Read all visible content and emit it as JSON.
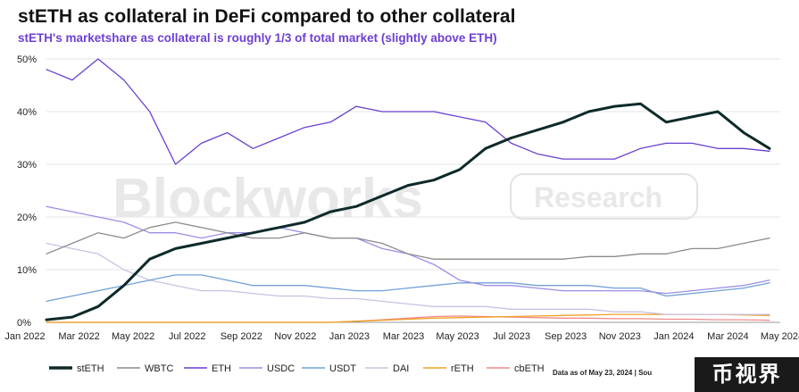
{
  "title": "stETH as collateral in DeFi compared to other collateral",
  "subtitle": "stETH's marketshare as collateral is roughly 1/3 of total market (slightly above ETH)",
  "watermark": {
    "brand": "Blockworks",
    "tag": "Research"
  },
  "note": "Data as of May 23, 2024 | Sou",
  "badge": "币视界",
  "colors": {
    "stETH": "#0d2a2a",
    "WBTC": "#8a8a8a",
    "ETH": "#6a3fcf",
    "USDC": "#9b8ee6",
    "USDT": "#6fa0d8",
    "DAI": "#c8c2e4",
    "rETH": "#f0a020",
    "cbETH": "#f08a8a"
  },
  "chart_data": {
    "type": "line",
    "title": "stETH as collateral in DeFi compared to other collateral",
    "subtitle": "stETH's marketshare as collateral is roughly 1/3 of total market (slightly above ETH)",
    "xlabel": "",
    "ylabel": "",
    "ylim": [
      0,
      50
    ],
    "y_ticks": [
      "0%",
      "10%",
      "20%",
      "30%",
      "40%",
      "50%"
    ],
    "x_ticks": [
      "Jan 2022",
      "Mar 2022",
      "May 2022",
      "Jul 2022",
      "Sep 2022",
      "Nov 2022",
      "Jan 2023",
      "Mar 2023",
      "May 2023",
      "Jul 2023",
      "Sep 2023",
      "Nov 2023",
      "Jan 2024",
      "Mar 2024",
      "May 2024"
    ],
    "grid": true,
    "legend": "bottom",
    "x": [
      "2022-01",
      "2022-02",
      "2022-03",
      "2022-04",
      "2022-05",
      "2022-06",
      "2022-07",
      "2022-08",
      "2022-09",
      "2022-10",
      "2022-11",
      "2022-12",
      "2023-01",
      "2023-02",
      "2023-03",
      "2023-04",
      "2023-05",
      "2023-06",
      "2023-07",
      "2023-08",
      "2023-09",
      "2023-10",
      "2023-11",
      "2023-12",
      "2024-01",
      "2024-02",
      "2024-03",
      "2024-04",
      "2024-05"
    ],
    "series": [
      {
        "name": "stETH",
        "values": [
          0.5,
          1,
          3,
          7,
          12,
          14,
          15,
          16,
          17,
          18,
          19,
          21,
          22,
          24,
          26,
          27,
          29,
          33,
          35,
          36.5,
          38,
          40,
          41,
          41.5,
          38,
          39,
          40,
          36,
          33
        ]
      },
      {
        "name": "WBTC",
        "values": [
          13,
          15,
          17,
          16,
          18,
          19,
          18,
          17,
          16,
          16,
          17,
          16,
          16,
          15,
          13,
          12,
          12,
          12,
          12,
          12,
          12,
          12.5,
          12.5,
          13,
          13,
          14,
          14,
          15,
          16
        ]
      },
      {
        "name": "ETH",
        "values": [
          48,
          46,
          50,
          46,
          40,
          30,
          34,
          36,
          33,
          35,
          37,
          38,
          41,
          40,
          40,
          40,
          39,
          38,
          34,
          32,
          31,
          31,
          31,
          33,
          34,
          34,
          33,
          33,
          32.5
        ]
      },
      {
        "name": "USDC",
        "values": [
          22,
          21,
          20,
          19,
          17,
          17,
          16,
          17,
          17,
          18,
          17,
          16,
          16,
          14,
          13,
          11,
          8,
          7,
          7,
          6.5,
          6,
          6,
          6,
          6,
          5.5,
          6,
          6.5,
          7,
          8
        ]
      },
      {
        "name": "USDT",
        "values": [
          4,
          5,
          6,
          7,
          8,
          9,
          9,
          8,
          7,
          7,
          7,
          6.5,
          6,
          6,
          6.5,
          7,
          7.5,
          7.5,
          7.5,
          7,
          7,
          7,
          6.5,
          6.5,
          5,
          5.5,
          6,
          6.5,
          7.5
        ]
      },
      {
        "name": "DAI",
        "values": [
          15,
          14,
          13,
          10,
          8,
          7,
          6,
          6,
          5.5,
          5,
          5,
          4.5,
          4.5,
          4,
          3.5,
          3,
          3,
          3,
          2.5,
          2.5,
          2.5,
          2.5,
          2,
          2,
          1.5,
          1.5,
          1.5,
          1.5,
          1.5
        ]
      },
      {
        "name": "rETH",
        "values": [
          0,
          0,
          0,
          0,
          0,
          0,
          0,
          0,
          0,
          0,
          0,
          0,
          0.2,
          0.4,
          0.6,
          0.8,
          0.9,
          1,
          1.1,
          1.2,
          1.3,
          1.4,
          1.5,
          1.5,
          1.5,
          1.5,
          1.5,
          1.4,
          1.3
        ]
      },
      {
        "name": "cbETH",
        "values": [
          0,
          0,
          0,
          0,
          0,
          0,
          0,
          0,
          0,
          0,
          0,
          0,
          0.2,
          0.5,
          0.8,
          1.1,
          1.2,
          1.1,
          1,
          0.9,
          0.8,
          0.8,
          0.7,
          0.7,
          0.6,
          0.6,
          0.5,
          0.5,
          0.4
        ]
      }
    ]
  }
}
